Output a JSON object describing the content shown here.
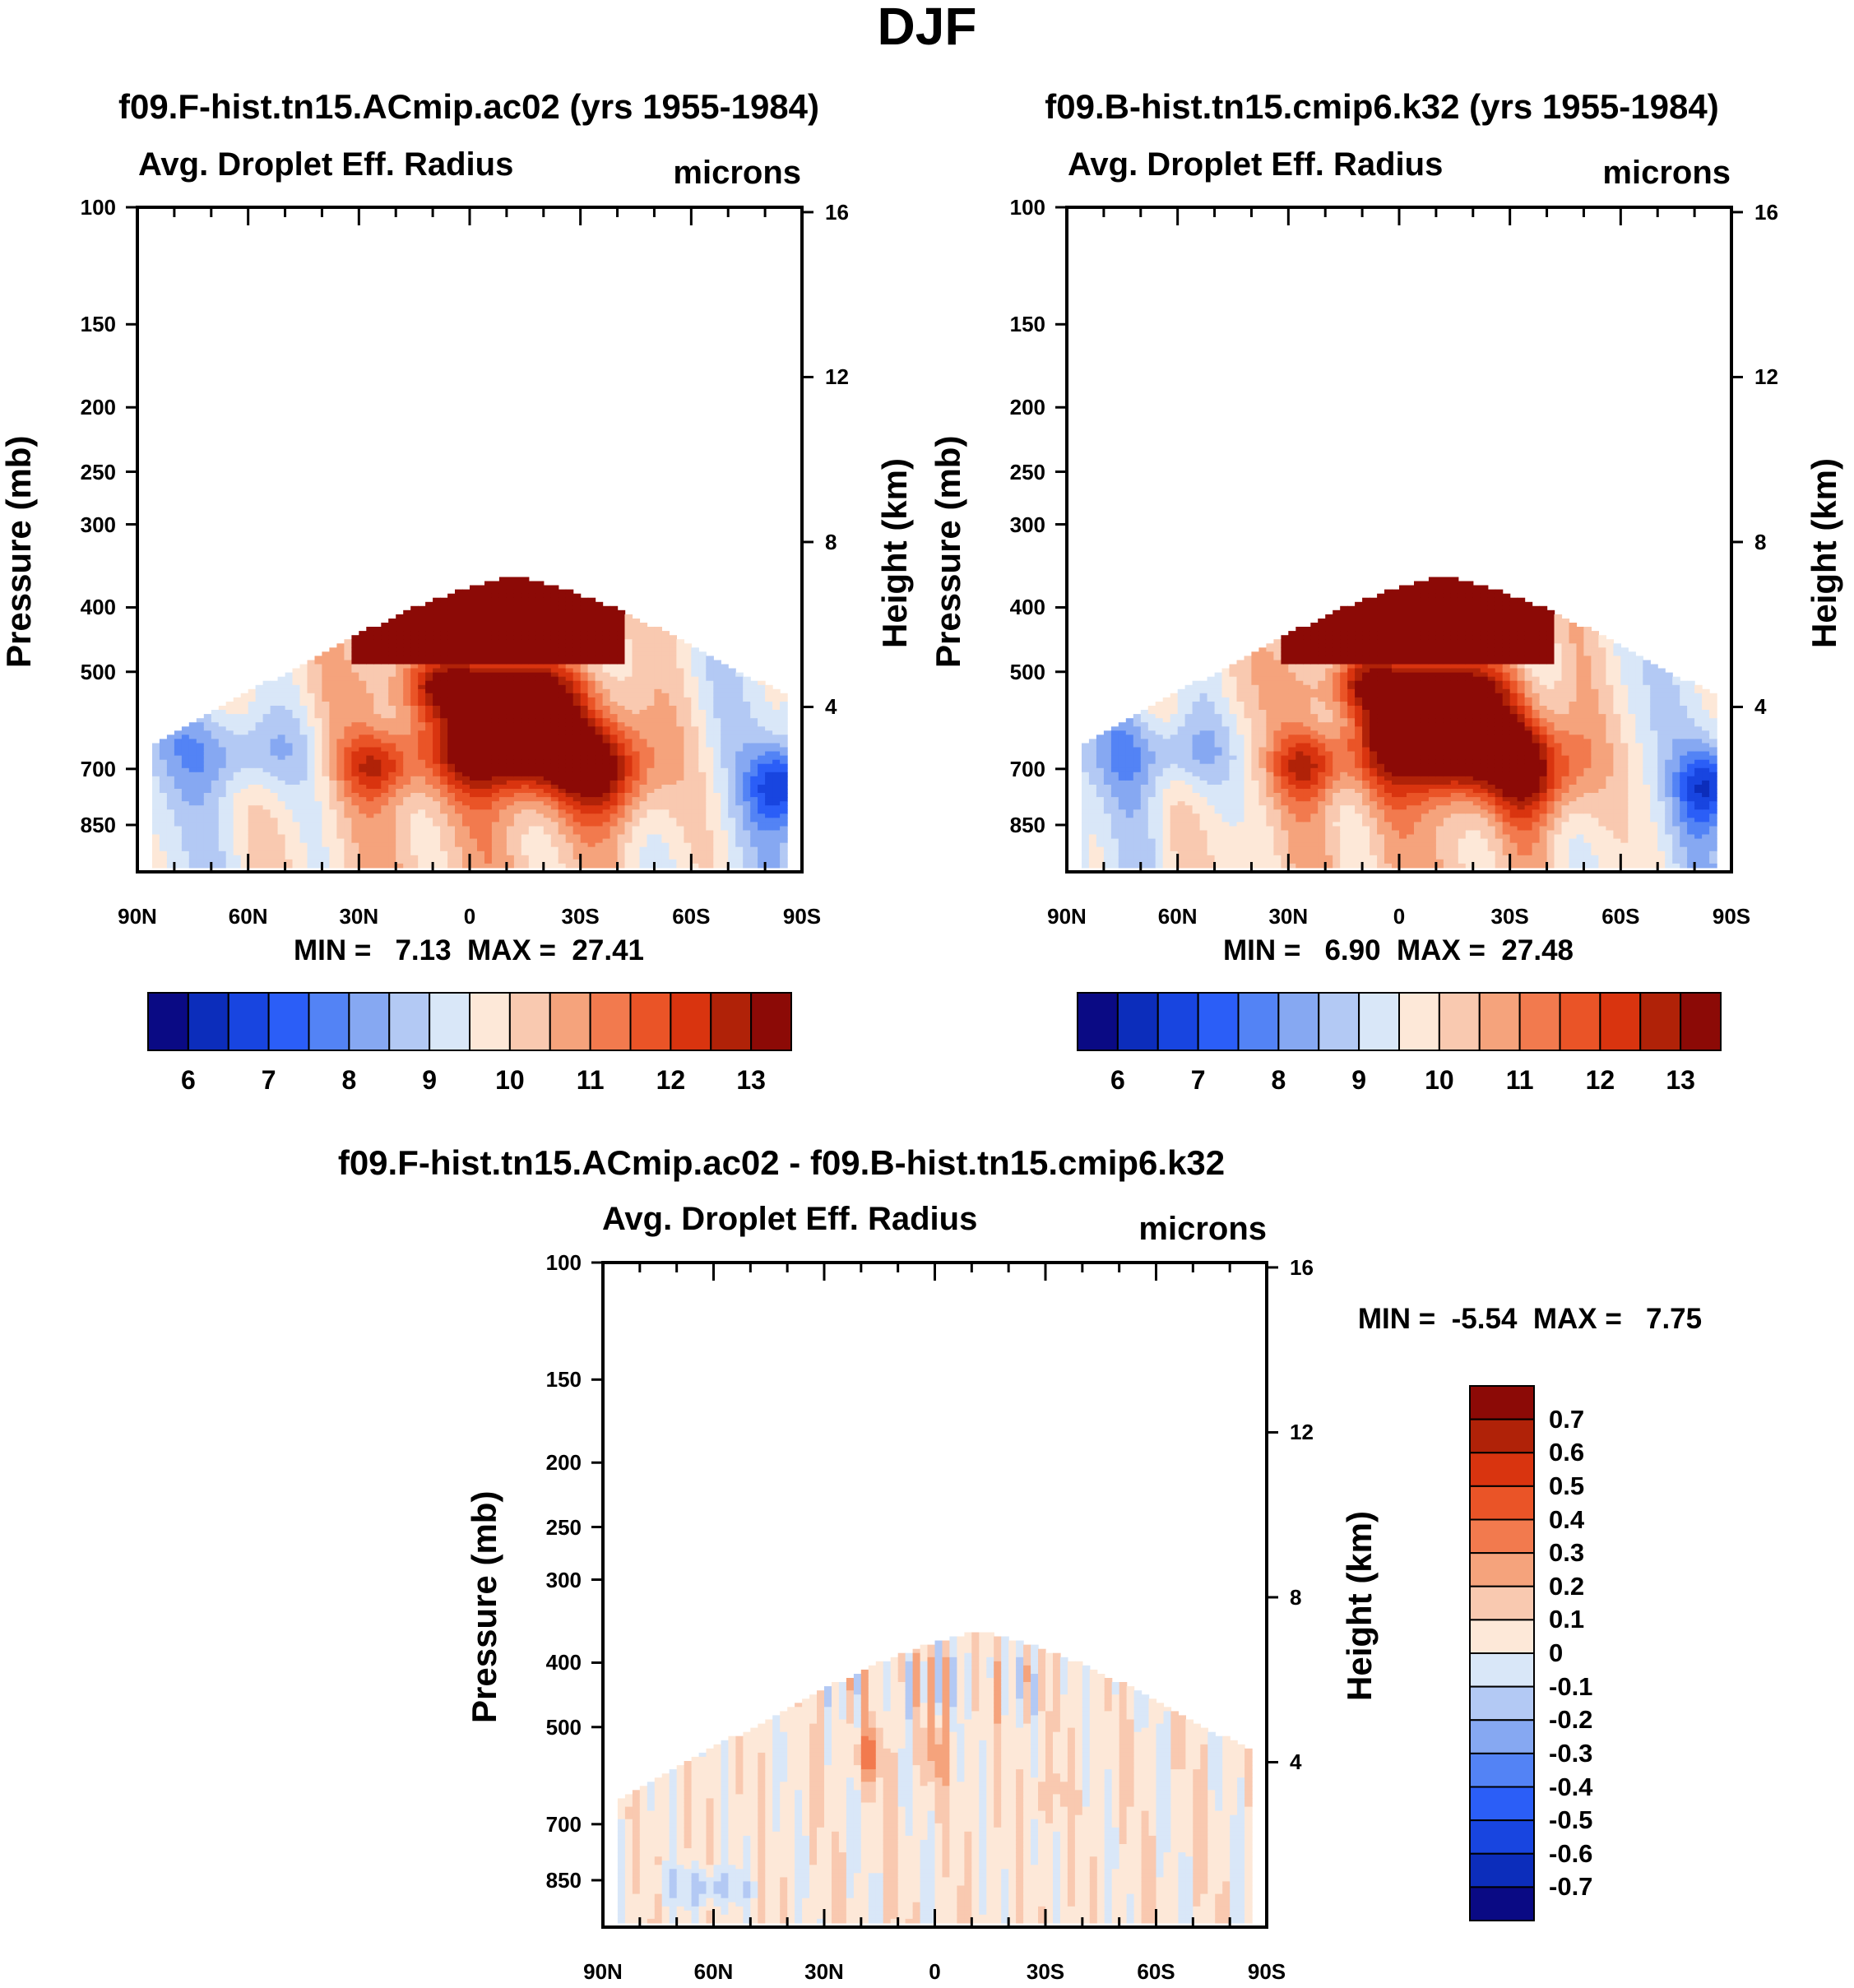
{
  "chart_data": [
    {
      "type": "heatmap",
      "id": "panel1",
      "season_title": "DJF",
      "title": "f09.F-hist.tn15.ACmip.ac02 (yrs 1955-1984)",
      "left_string": "Avg. Droplet Eff. Radius",
      "right_string": "microns",
      "ylabel": "Pressure (mb)",
      "ylabel_right": "Height (km)",
      "x_tick_labels": [
        "90N",
        "60N",
        "30N",
        "0",
        "30S",
        "60S",
        "90S"
      ],
      "y_tick_labels": [
        "100",
        "150",
        "200",
        "250",
        "300",
        "400",
        "500",
        "700",
        "850"
      ],
      "y_tick_values": [
        100,
        150,
        200,
        250,
        300,
        400,
        500,
        700,
        850
      ],
      "height_tick_labels": [
        "16",
        "12",
        "8",
        "4"
      ],
      "height_tick_values": [
        16,
        12,
        8,
        4
      ],
      "ylim": [
        100,
        1000
      ],
      "xlim": [
        90,
        -90
      ],
      "min_text": "MIN =   7.13  MAX =  27.41",
      "colorbar_ticks": [
        "6",
        "7",
        "8",
        "9",
        "10",
        "11",
        "12",
        "13"
      ],
      "colorbar_levels": [
        5.5,
        6,
        6.5,
        7,
        7.5,
        8,
        8.5,
        9,
        9.5,
        10,
        10.5,
        11,
        11.5,
        12,
        12.5,
        13,
        13.5
      ],
      "colors": [
        "#0a0a84",
        "#0c2dbb",
        "#1845e0",
        "#2b5ef7",
        "#5383f5",
        "#86a8f2",
        "#b3c9f4",
        "#d9e7f8",
        "#fde8d8",
        "#f9c9b0",
        "#f5a37c",
        "#f27a4e",
        "#ea5427",
        "#d9340f",
        "#b02208",
        "#8c0a06"
      ]
    },
    {
      "type": "heatmap",
      "id": "panel2",
      "title": "f09.B-hist.tn15.cmip6.k32 (yrs 1955-1984)",
      "left_string": "Avg. Droplet Eff. Radius",
      "right_string": "microns",
      "ylabel": "Pressure (mb)",
      "ylabel_right": "Height (km)",
      "x_tick_labels": [
        "90N",
        "60N",
        "30N",
        "0",
        "30S",
        "60S",
        "90S"
      ],
      "y_tick_labels": [
        "100",
        "150",
        "200",
        "250",
        "300",
        "400",
        "500",
        "700",
        "850"
      ],
      "height_tick_labels": [
        "16",
        "12",
        "8",
        "4"
      ],
      "min_text": "MIN =   6.90  MAX =  27.48",
      "colorbar_ticks": [
        "6",
        "7",
        "8",
        "9",
        "10",
        "11",
        "12",
        "13"
      ]
    },
    {
      "type": "heatmap",
      "id": "panel3",
      "title": "f09.F-hist.tn15.ACmip.ac02 - f09.B-hist.tn15.cmip6.k32",
      "left_string": "Avg. Droplet Eff. Radius",
      "right_string": "microns",
      "ylabel": "Pressure (mb)",
      "ylabel_right": "Height (km)",
      "x_tick_labels": [
        "90N",
        "60N",
        "30N",
        "0",
        "30S",
        "60S",
        "90S"
      ],
      "y_tick_labels": [
        "100",
        "150",
        "200",
        "250",
        "300",
        "400",
        "500",
        "700",
        "850"
      ],
      "height_tick_labels": [
        "16",
        "12",
        "8",
        "4"
      ],
      "min_text": "MIN =  -5.54  MAX =   7.75",
      "colorbar_ticks": [
        "0.7",
        "0.6",
        "0.5",
        "0.4",
        "0.3",
        "0.2",
        "0.1",
        "0",
        "-0.1",
        "-0.2",
        "-0.3",
        "-0.4",
        "-0.5",
        "-0.6",
        "-0.7"
      ],
      "colors": [
        "#8c0a06",
        "#b02208",
        "#d9340f",
        "#ea5427",
        "#f27a4e",
        "#f5a37c",
        "#f9c9b0",
        "#fde8d8",
        "#d9e7f8",
        "#b3c9f4",
        "#86a8f2",
        "#5383f5",
        "#2b5ef7",
        "#1845e0",
        "#0c2dbb",
        "#0a0a84"
      ]
    }
  ]
}
